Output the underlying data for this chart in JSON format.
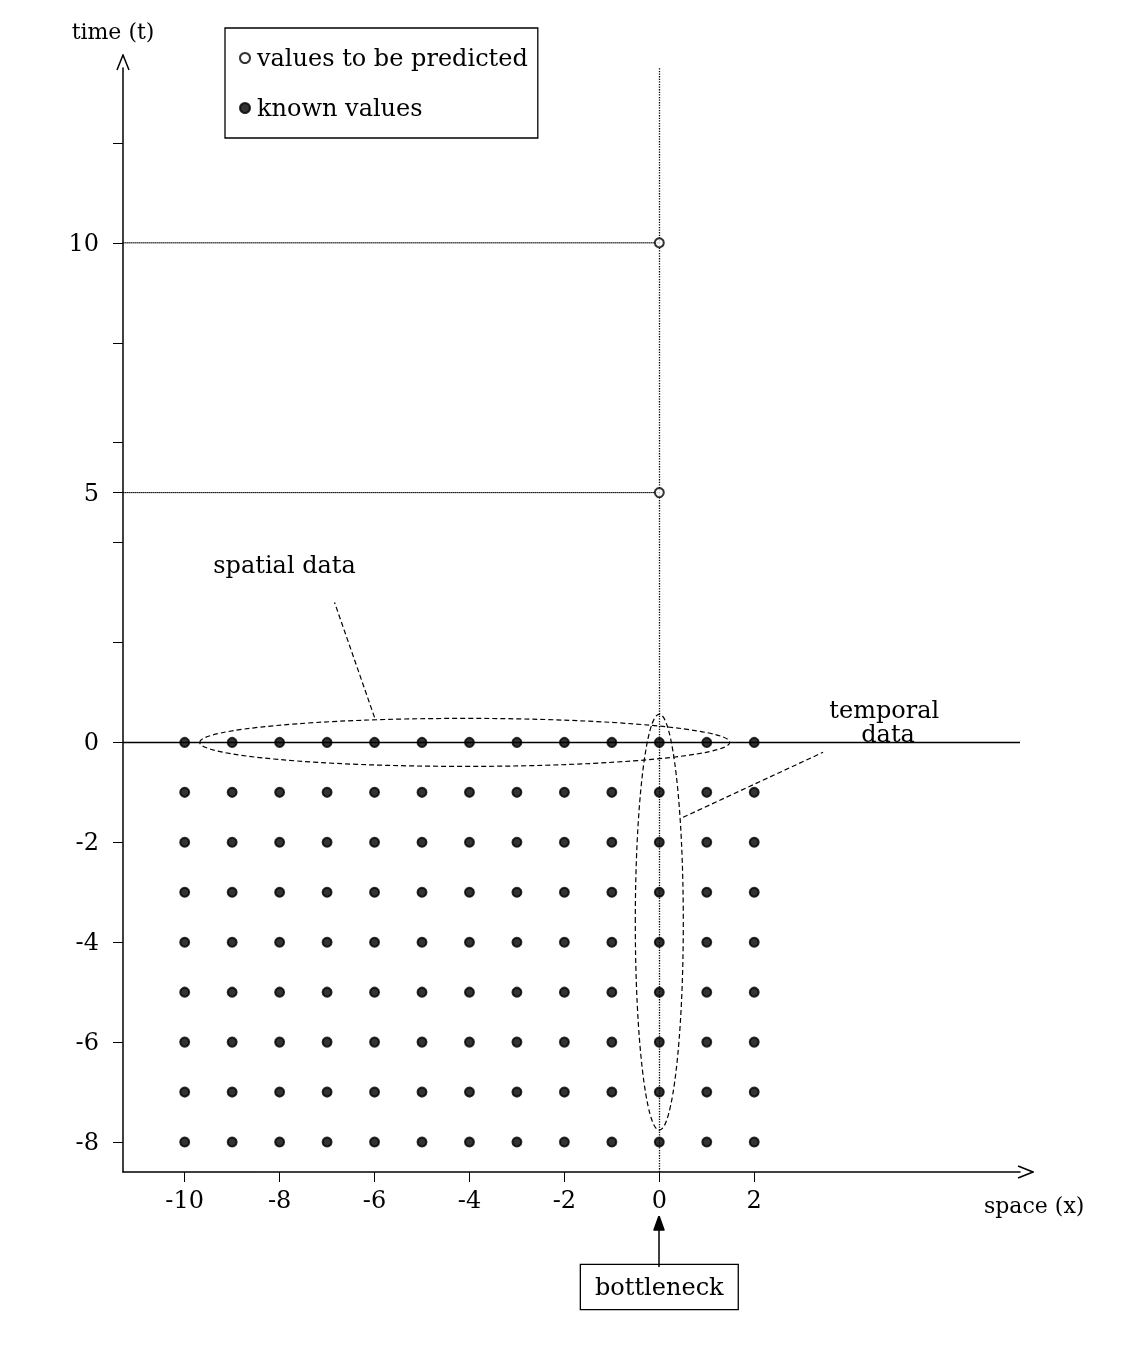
{
  "chart_data": {
    "type": "scatter",
    "xlabel": "space (x)",
    "ylabel": "time (t)",
    "xlim": [
      -11.3,
      7.6
    ],
    "ylim": [
      -8.6,
      13.5
    ],
    "xticks": [
      -10,
      -8,
      -6,
      -4,
      -2,
      0,
      2
    ],
    "yticks": [
      {
        "value": 12,
        "label": null
      },
      10,
      {
        "value": 8,
        "label": null
      },
      {
        "value": 6,
        "label": null
      },
      5,
      {
        "value": 4,
        "label": null
      },
      {
        "value": 2,
        "label": null
      },
      0,
      -2,
      -4,
      -6,
      -8
    ],
    "grid": false,
    "legend": "top left",
    "ref_lines": [
      {
        "axis": "y",
        "value": 0,
        "color": "#000000",
        "line_style": "solid"
      },
      {
        "axis": "x",
        "value": 0,
        "color": "#000000",
        "line_style": "dotted"
      }
    ],
    "annotations": [
      "spatial data",
      "temporal data",
      "bottleneck"
    ],
    "series": [
      {
        "name": "values to be predicted",
        "color": "#ffffff",
        "marker": "circle",
        "x": [
          0,
          0
        ],
        "values": [
          5,
          10
        ]
      },
      {
        "name": "known values",
        "color": "#000000",
        "marker": "circle",
        "x": [
          -10,
          -9,
          -8,
          -7,
          -6,
          -5,
          -4,
          -3,
          -2,
          -1,
          0,
          1,
          2,
          -10,
          -9,
          -8,
          -7,
          -6,
          -5,
          -4,
          -3,
          -2,
          -1,
          0,
          1,
          2,
          -10,
          -9,
          -8,
          -7,
          -6,
          -5,
          -4,
          -3,
          -2,
          -1,
          0,
          1,
          2,
          -10,
          -9,
          -8,
          -7,
          -6,
          -5,
          -4,
          -3,
          -2,
          -1,
          0,
          1,
          2,
          -10,
          -9,
          -8,
          -7,
          -6,
          -5,
          -4,
          -3,
          -2,
          -1,
          0,
          1,
          2,
          -10,
          -9,
          -8,
          -7,
          -6,
          -5,
          -4,
          -3,
          -2,
          -1,
          0,
          1,
          2,
          -10,
          -9,
          -8,
          -7,
          -6,
          -5,
          -4,
          -3,
          -2,
          -1,
          0,
          1,
          2,
          -10,
          -9,
          -8,
          -7,
          -6,
          -5,
          -4,
          -3,
          -2,
          -1,
          0,
          1,
          2,
          -10,
          -9,
          -8,
          -7,
          -6,
          -5,
          -4,
          -3,
          -2,
          -1,
          0,
          1,
          2
        ],
        "values": [
          0,
          0,
          0,
          0,
          0,
          0,
          0,
          0,
          0,
          0,
          0,
          0,
          0,
          -1,
          -1,
          -1,
          -1,
          -1,
          -1,
          -1,
          -1,
          -1,
          -1,
          -1,
          -1,
          -1,
          -2,
          -2,
          -2,
          -2,
          -2,
          -2,
          -2,
          -2,
          -2,
          -2,
          -2,
          -2,
          -2,
          -3,
          -3,
          -3,
          -3,
          -3,
          -3,
          -3,
          -3,
          -3,
          -3,
          -3,
          -3,
          -3,
          -4,
          -4,
          -4,
          -4,
          -4,
          -4,
          -4,
          -4,
          -4,
          -4,
          -4,
          -4,
          -4,
          -5,
          -5,
          -5,
          -5,
          -5,
          -5,
          -5,
          -5,
          -5,
          -5,
          -5,
          -5,
          -5,
          -6,
          -6,
          -6,
          -6,
          -6,
          -6,
          -6,
          -6,
          -6,
          -6,
          -6,
          -6,
          -6,
          -7,
          -7,
          -7,
          -7,
          -7,
          -7,
          -7,
          -7,
          -7,
          -7,
          -7,
          -7,
          -7,
          -8,
          -8,
          -8,
          -8,
          -8,
          -8,
          -8,
          -8,
          -8,
          -8,
          -8,
          -8,
          -8
        ]
      },
      {
        "type": "line",
        "color": "#000000",
        "line_style": "dotted",
        "marker": "none",
        "x": [
          -11.3,
          0
        ],
        "values": [
          5,
          5
        ]
      },
      {
        "type": "line",
        "color": "#000000",
        "line_style": "dotted",
        "marker": "none",
        "x": [
          -11.3,
          0
        ],
        "values": [
          10,
          10
        ]
      }
    ]
  }
}
